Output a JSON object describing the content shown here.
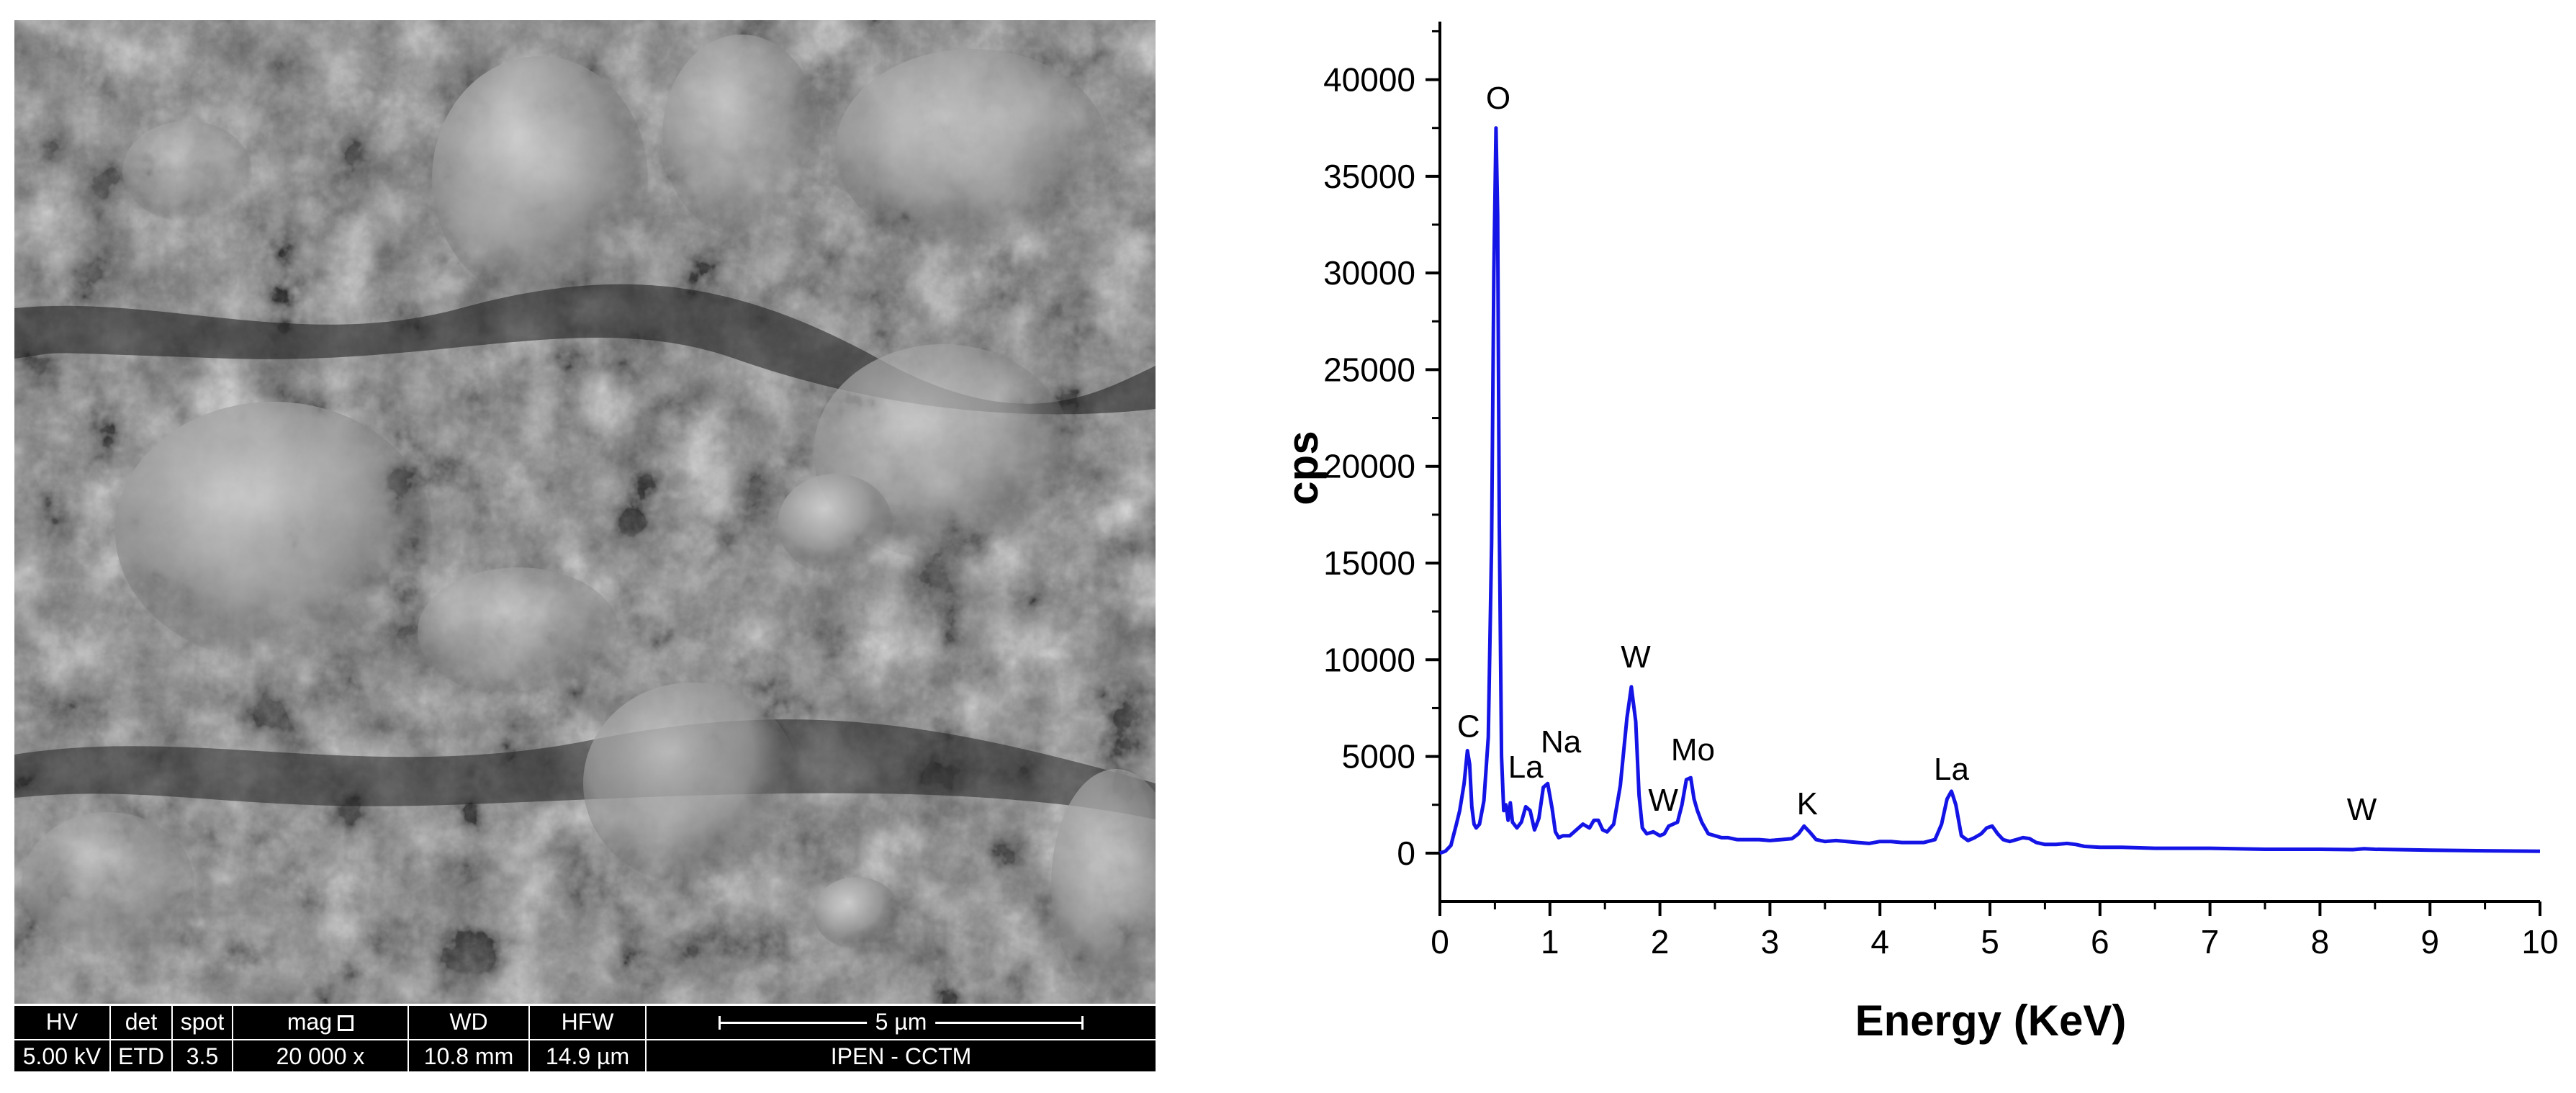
{
  "sem": {
    "databar": {
      "hv": {
        "label": "HV",
        "value": "5.00 kV"
      },
      "det": {
        "label": "det",
        "value": "ETD"
      },
      "spot": {
        "label": "spot",
        "value": "3.5"
      },
      "mag": {
        "label": "mag",
        "value": "20 000 x"
      },
      "wd": {
        "label": "WD",
        "value": "10.8 mm"
      },
      "hfw": {
        "label": "HFW",
        "value": "14.9 µm"
      },
      "scale_bar": "5 µm",
      "institution": "IPEN - CCTM"
    }
  },
  "chart_data": {
    "type": "line",
    "title": "",
    "xlabel": "Energy (KeV)",
    "ylabel": "cps",
    "xlim": [
      0,
      10
    ],
    "ylim": [
      -2500,
      43000
    ],
    "xticks": [
      "0",
      "1",
      "2",
      "3",
      "4",
      "5",
      "6",
      "7",
      "8",
      "9",
      "10"
    ],
    "yticks": [
      "0",
      "5000",
      "10000",
      "15000",
      "20000",
      "25000",
      "30000",
      "35000",
      "40000"
    ],
    "ytick_values": [
      0,
      5000,
      10000,
      15000,
      20000,
      25000,
      30000,
      35000,
      40000
    ],
    "grid": false,
    "line_color": "#1414e6",
    "series": [
      {
        "x": [
          0.0,
          0.05,
          0.1,
          0.15,
          0.18,
          0.22,
          0.25,
          0.27,
          0.29,
          0.31,
          0.33,
          0.36,
          0.4,
          0.44,
          0.47,
          0.49,
          0.51,
          0.525,
          0.54,
          0.56,
          0.58,
          0.6,
          0.62,
          0.64,
          0.66,
          0.7,
          0.74,
          0.78,
          0.82,
          0.86,
          0.9,
          0.94,
          0.98,
          1.02,
          1.05,
          1.08,
          1.12,
          1.18,
          1.24,
          1.3,
          1.36,
          1.4,
          1.44,
          1.48,
          1.52,
          1.58,
          1.64,
          1.7,
          1.74,
          1.78,
          1.81,
          1.84,
          1.88,
          1.94,
          2.0,
          2.04,
          2.08,
          2.12,
          2.16,
          2.2,
          2.24,
          2.28,
          2.31,
          2.34,
          2.38,
          2.44,
          2.5,
          2.56,
          2.62,
          2.7,
          2.8,
          2.9,
          3.0,
          3.1,
          3.2,
          3.26,
          3.31,
          3.36,
          3.42,
          3.5,
          3.6,
          3.7,
          3.8,
          3.9,
          4.0,
          4.1,
          4.2,
          4.3,
          4.4,
          4.5,
          4.56,
          4.61,
          4.65,
          4.69,
          4.74,
          4.8,
          4.86,
          4.92,
          4.97,
          5.02,
          5.07,
          5.12,
          5.18,
          5.24,
          5.3,
          5.36,
          5.42,
          5.5,
          5.6,
          5.7,
          5.78,
          5.86,
          6.0,
          6.2,
          6.5,
          7.0,
          7.5,
          8.0,
          8.3,
          8.4,
          8.5,
          9.0,
          9.5,
          10.0
        ],
        "y": [
          0,
          100,
          400,
          1500,
          2200,
          3600,
          5300,
          4600,
          2400,
          1500,
          1300,
          1500,
          2700,
          6000,
          16000,
          30000,
          37500,
          33000,
          17000,
          5000,
          2200,
          2500,
          1700,
          2600,
          1600,
          1300,
          1600,
          2400,
          2200,
          1200,
          1800,
          3400,
          3600,
          2300,
          1100,
          800,
          900,
          900,
          1200,
          1500,
          1300,
          1700,
          1700,
          1200,
          1100,
          1500,
          3500,
          7000,
          8600,
          6800,
          3000,
          1300,
          1000,
          1100,
          900,
          1000,
          1400,
          1500,
          1600,
          2500,
          3800,
          3900,
          2800,
          2200,
          1600,
          1000,
          900,
          800,
          800,
          700,
          700,
          700,
          650,
          700,
          750,
          1000,
          1400,
          1100,
          700,
          600,
          650,
          600,
          550,
          500,
          600,
          600,
          550,
          550,
          550,
          700,
          1500,
          2800,
          3200,
          2500,
          900,
          650,
          800,
          1000,
          1300,
          1400,
          1000,
          700,
          600,
          700,
          800,
          750,
          550,
          450,
          450,
          500,
          450,
          350,
          300,
          300,
          250,
          250,
          200,
          200,
          180,
          230,
          200,
          150,
          120,
          100
        ]
      }
    ],
    "annotations": [
      {
        "text": "O",
        "x": 0.53,
        "y": 38500
      },
      {
        "text": "C",
        "x": 0.26,
        "y": 6000
      },
      {
        "text": "La",
        "x": 0.78,
        "y": 3900
      },
      {
        "text": "Na",
        "x": 1.1,
        "y": 5200
      },
      {
        "text": "W",
        "x": 1.78,
        "y": 9600
      },
      {
        "text": "W",
        "x": 2.03,
        "y": 2200
      },
      {
        "text": "Mo",
        "x": 2.3,
        "y": 4800
      },
      {
        "text": "K",
        "x": 3.34,
        "y": 2000
      },
      {
        "text": "La",
        "x": 4.65,
        "y": 3800
      },
      {
        "text": "W",
        "x": 8.38,
        "y": 1700
      }
    ]
  }
}
